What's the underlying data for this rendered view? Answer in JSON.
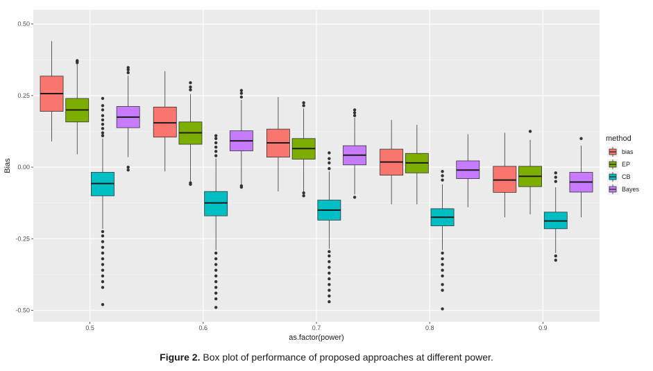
{
  "chart_data": {
    "type": "boxplot",
    "xlabel": "as.factor(power)",
    "ylabel": "Bias",
    "ylim": [
      -0.54,
      0.55
    ],
    "yticks": [
      0.5,
      0.25,
      0.0,
      -0.25,
      -0.5
    ],
    "ytick_labels": [
      "0.50",
      "0.25",
      "0.00",
      "-0.25",
      "-0.50"
    ],
    "categories": [
      "0.5",
      "0.6",
      "0.7",
      "0.8",
      "0.9"
    ],
    "legend": {
      "title": "method",
      "position": "right"
    },
    "grid": true,
    "series": [
      {
        "name": "bias",
        "color": "#F8766D",
        "boxes": [
          {
            "min": 0.09,
            "q1": 0.195,
            "median": 0.257,
            "q3": 0.318,
            "max": 0.44,
            "outliers": []
          },
          {
            "min": -0.015,
            "q1": 0.105,
            "median": 0.155,
            "q3": 0.21,
            "max": 0.335,
            "outliers": []
          },
          {
            "min": -0.085,
            "q1": 0.035,
            "median": 0.085,
            "q3": 0.133,
            "max": 0.245,
            "outliers": []
          },
          {
            "min": -0.13,
            "q1": -0.028,
            "median": 0.018,
            "q3": 0.063,
            "max": 0.165,
            "outliers": []
          },
          {
            "min": -0.175,
            "q1": -0.088,
            "median": -0.045,
            "q3": 0.003,
            "max": 0.12,
            "outliers": []
          }
        ]
      },
      {
        "name": "EP",
        "color": "#7CAE00",
        "boxes": [
          {
            "min": 0.045,
            "q1": 0.158,
            "median": 0.2,
            "q3": 0.24,
            "max": 0.36,
            "outliers": [
              0.365,
              0.37,
              0.372
            ]
          },
          {
            "min": -0.05,
            "q1": 0.08,
            "median": 0.12,
            "q3": 0.158,
            "max": 0.255,
            "outliers": [
              0.27,
              0.28,
              0.295,
              -0.055,
              -0.06
            ]
          },
          {
            "min": -0.085,
            "q1": 0.028,
            "median": 0.065,
            "q3": 0.1,
            "max": 0.205,
            "outliers": [
              0.215,
              0.225,
              -0.09,
              -0.1
            ]
          },
          {
            "min": -0.13,
            "q1": -0.02,
            "median": 0.015,
            "q3": 0.048,
            "max": 0.148,
            "outliers": []
          },
          {
            "min": -0.165,
            "q1": -0.068,
            "median": -0.032,
            "q3": 0.003,
            "max": 0.095,
            "outliers": [
              0.125
            ]
          }
        ]
      },
      {
        "name": "CB",
        "color": "#00BFC4",
        "boxes": [
          {
            "min": -0.215,
            "q1": -0.1,
            "median": -0.057,
            "q3": -0.018,
            "max": 0.1,
            "outliers": [
              0.11,
              0.12,
              0.135,
              0.15,
              0.165,
              0.18,
              0.2,
              0.215,
              0.24,
              -0.225,
              -0.24,
              -0.26,
              -0.28,
              -0.3,
              -0.32,
              -0.34,
              -0.36,
              -0.38,
              -0.4,
              -0.42,
              -0.48
            ]
          },
          {
            "min": -0.29,
            "q1": -0.17,
            "median": -0.125,
            "q3": -0.085,
            "max": 0.03,
            "outliers": [
              0.04,
              0.055,
              0.07,
              0.085,
              0.1,
              0.11,
              -0.3,
              -0.32,
              -0.34,
              -0.36,
              -0.38,
              -0.4,
              -0.42,
              -0.44,
              -0.46,
              -0.49
            ]
          },
          {
            "min": -0.285,
            "q1": -0.185,
            "median": -0.15,
            "q3": -0.115,
            "max": -0.015,
            "outliers": [
              -0.005,
              0.015,
              0.03,
              0.05,
              -0.295,
              -0.31,
              -0.33,
              -0.35,
              -0.37,
              -0.39,
              -0.41,
              -0.43,
              -0.45,
              -0.47
            ]
          },
          {
            "min": -0.29,
            "q1": -0.205,
            "median": -0.175,
            "q3": -0.145,
            "max": -0.06,
            "outliers": [
              -0.045,
              -0.03,
              -0.015,
              -0.3,
              -0.32,
              -0.34,
              -0.36,
              -0.38,
              -0.41,
              -0.43,
              -0.495
            ]
          },
          {
            "min": -0.3,
            "q1": -0.215,
            "median": -0.188,
            "q3": -0.157,
            "max": -0.07,
            "outliers": [
              -0.05,
              -0.035,
              -0.02,
              -0.31,
              -0.325
            ]
          }
        ]
      },
      {
        "name": "Bayes",
        "color": "#C77CFF",
        "boxes": [
          {
            "min": 0.035,
            "q1": 0.138,
            "median": 0.175,
            "q3": 0.212,
            "max": 0.32,
            "outliers": [
              0.33,
              0.34,
              0.348,
              0.0,
              -0.01
            ]
          },
          {
            "min": -0.06,
            "q1": 0.057,
            "median": 0.092,
            "q3": 0.127,
            "max": 0.235,
            "outliers": [
              0.245,
              0.258,
              0.268,
              -0.065,
              -0.07
            ]
          },
          {
            "min": -0.095,
            "q1": 0.008,
            "median": 0.042,
            "q3": 0.075,
            "max": 0.172,
            "outliers": [
              0.18,
              0.19,
              0.2,
              -0.105
            ]
          },
          {
            "min": -0.14,
            "q1": -0.04,
            "median": -0.01,
            "q3": 0.022,
            "max": 0.115,
            "outliers": []
          },
          {
            "min": -0.175,
            "q1": -0.087,
            "median": -0.052,
            "q3": -0.018,
            "max": 0.075,
            "outliers": [
              0.1
            ]
          }
        ]
      }
    ]
  },
  "caption": {
    "label": "Figure 2.",
    "text": " Box plot of performance of proposed approaches at different power."
  }
}
